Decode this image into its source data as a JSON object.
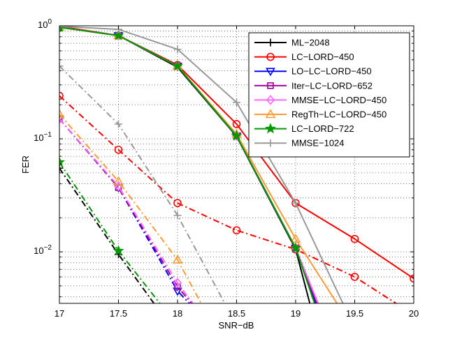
{
  "chart_data": {
    "type": "line",
    "title": "",
    "xlabel": "SNR−dB",
    "ylabel": "FER",
    "xlim": [
      17,
      20
    ],
    "ylim": [
      0.0035,
      1
    ],
    "yscale": "log",
    "grid": true,
    "legend_position": "top-right",
    "x_ticks": [
      17,
      17.5,
      18,
      18.5,
      19,
      19.5,
      20
    ],
    "x_tick_labels": [
      "17",
      "17.5",
      "18",
      "18.5",
      "19",
      "19.5",
      "20"
    ],
    "y_ticks": [
      0.01,
      0.1,
      1
    ],
    "y_tick_labels": [
      {
        "base": "10",
        "exp": "−2"
      },
      {
        "base": "10",
        "exp": "−1"
      },
      {
        "base": "10",
        "exp": "0"
      }
    ],
    "series": [
      {
        "name": "ML−2048",
        "color": "#000000",
        "marker": "plus",
        "solid": {
          "x": [
            17,
            17.5,
            18,
            18.5,
            19,
            19.12
          ],
          "y": [
            0.97,
            0.82,
            0.43,
            0.105,
            0.0105,
            0.0035
          ]
        },
        "dashed": {
          "x": [
            17,
            17.5,
            17.8
          ],
          "y": [
            0.055,
            0.0095,
            0.0035
          ]
        }
      },
      {
        "name": "LC−LORD−450",
        "color": "#ff0000",
        "marker": "circle",
        "solid": {
          "x": [
            17,
            17.5,
            18,
            18.5,
            19,
            19.5,
            20
          ],
          "y": [
            0.99,
            0.82,
            0.45,
            0.135,
            0.027,
            0.013,
            0.0058
          ]
        },
        "dashed": {
          "x": [
            17,
            17.5,
            18,
            18.5,
            19,
            19.5,
            19.85
          ],
          "y": [
            0.24,
            0.08,
            0.027,
            0.0155,
            0.0105,
            0.006,
            0.0035
          ]
        }
      },
      {
        "name": "LO−LC−LORD−450",
        "color": "#0000ff",
        "marker": "triangle-down",
        "solid": {
          "x": [
            17,
            17.5,
            18,
            18.5,
            19,
            19.17
          ],
          "y": [
            0.97,
            0.82,
            0.44,
            0.106,
            0.0108,
            0.0035
          ]
        },
        "dashed": {
          "x": [
            17,
            17.5,
            18,
            18.1
          ],
          "y": [
            0.15,
            0.037,
            0.0045,
            0.0035
          ]
        }
      },
      {
        "name": "Iter−LC−LORD−652",
        "color": "#990099",
        "marker": "square",
        "solid": {
          "x": [
            17,
            17.5,
            18,
            18.5,
            19,
            19.18
          ],
          "y": [
            0.97,
            0.82,
            0.44,
            0.106,
            0.0108,
            0.0035
          ]
        },
        "dashed": {
          "x": [
            17,
            17.5,
            18,
            18.12
          ],
          "y": [
            0.15,
            0.037,
            0.0049,
            0.0035
          ]
        }
      },
      {
        "name": "MMSE−LC−LORD−450",
        "color": "#ff66ff",
        "marker": "diamond",
        "solid": {
          "x": [
            17,
            17.5,
            18,
            18.5,
            19,
            19.19
          ],
          "y": [
            0.97,
            0.82,
            0.44,
            0.106,
            0.0108,
            0.0035
          ]
        },
        "dashed": {
          "x": [
            17,
            17.5,
            18,
            18.13
          ],
          "y": [
            0.15,
            0.038,
            0.0053,
            0.0035
          ]
        }
      },
      {
        "name": "RegTh−LC−LORD−450",
        "color": "#ff9933",
        "marker": "triangle-up",
        "solid": {
          "x": [
            17,
            17.5,
            18,
            18.5,
            19,
            19.35
          ],
          "y": [
            0.97,
            0.82,
            0.44,
            0.11,
            0.013,
            0.0035
          ]
        },
        "dashed": {
          "x": [
            17,
            17.5,
            18,
            18.2
          ],
          "y": [
            0.165,
            0.042,
            0.0085,
            0.0035
          ]
        }
      },
      {
        "name": "LC−LORD−722",
        "color": "#009900",
        "marker": "star",
        "solid": {
          "x": [
            17,
            17.5,
            18,
            18.5,
            19,
            19.16
          ],
          "y": [
            0.97,
            0.82,
            0.44,
            0.106,
            0.0108,
            0.0035
          ]
        },
        "dashed": {
          "x": [
            17,
            17.5,
            17.85
          ],
          "y": [
            0.062,
            0.0102,
            0.0035
          ]
        }
      },
      {
        "name": "MMSE−1024",
        "color": "#999999",
        "marker": "plus",
        "solid": {
          "x": [
            17,
            17.5,
            18,
            18.5,
            19,
            19.4
          ],
          "y": [
            0.99,
            0.93,
            0.62,
            0.21,
            0.027,
            0.0035
          ]
        },
        "dashed": {
          "x": [
            17,
            17.5,
            18,
            18.4
          ],
          "y": [
            0.44,
            0.135,
            0.021,
            0.0035
          ]
        }
      }
    ]
  }
}
